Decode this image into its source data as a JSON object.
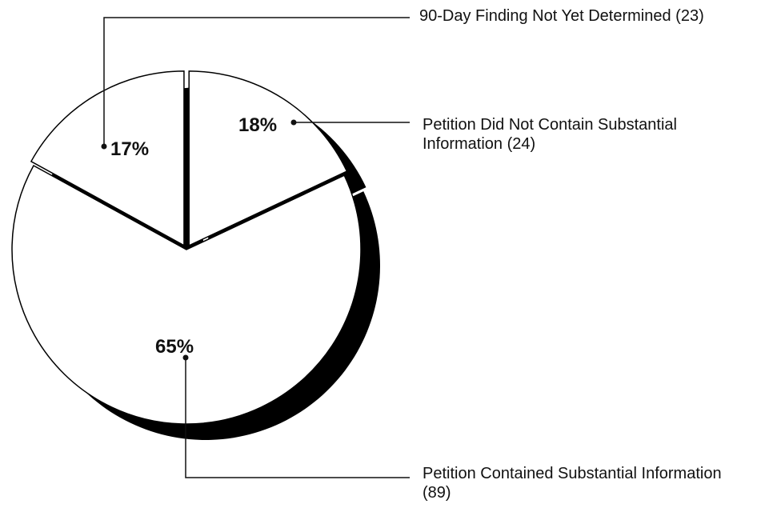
{
  "chart_data": {
    "type": "pie",
    "categories": [
      "Petition Did Not Contain Substantial Information (24)",
      "Petition Contained Substantial Information (89)",
      "90-Day Finding Not Yet Determined (23)"
    ],
    "values": [
      18,
      65,
      17
    ],
    "value_labels": [
      "18%",
      "65%",
      "17%"
    ],
    "color": "#ffffff"
  }
}
